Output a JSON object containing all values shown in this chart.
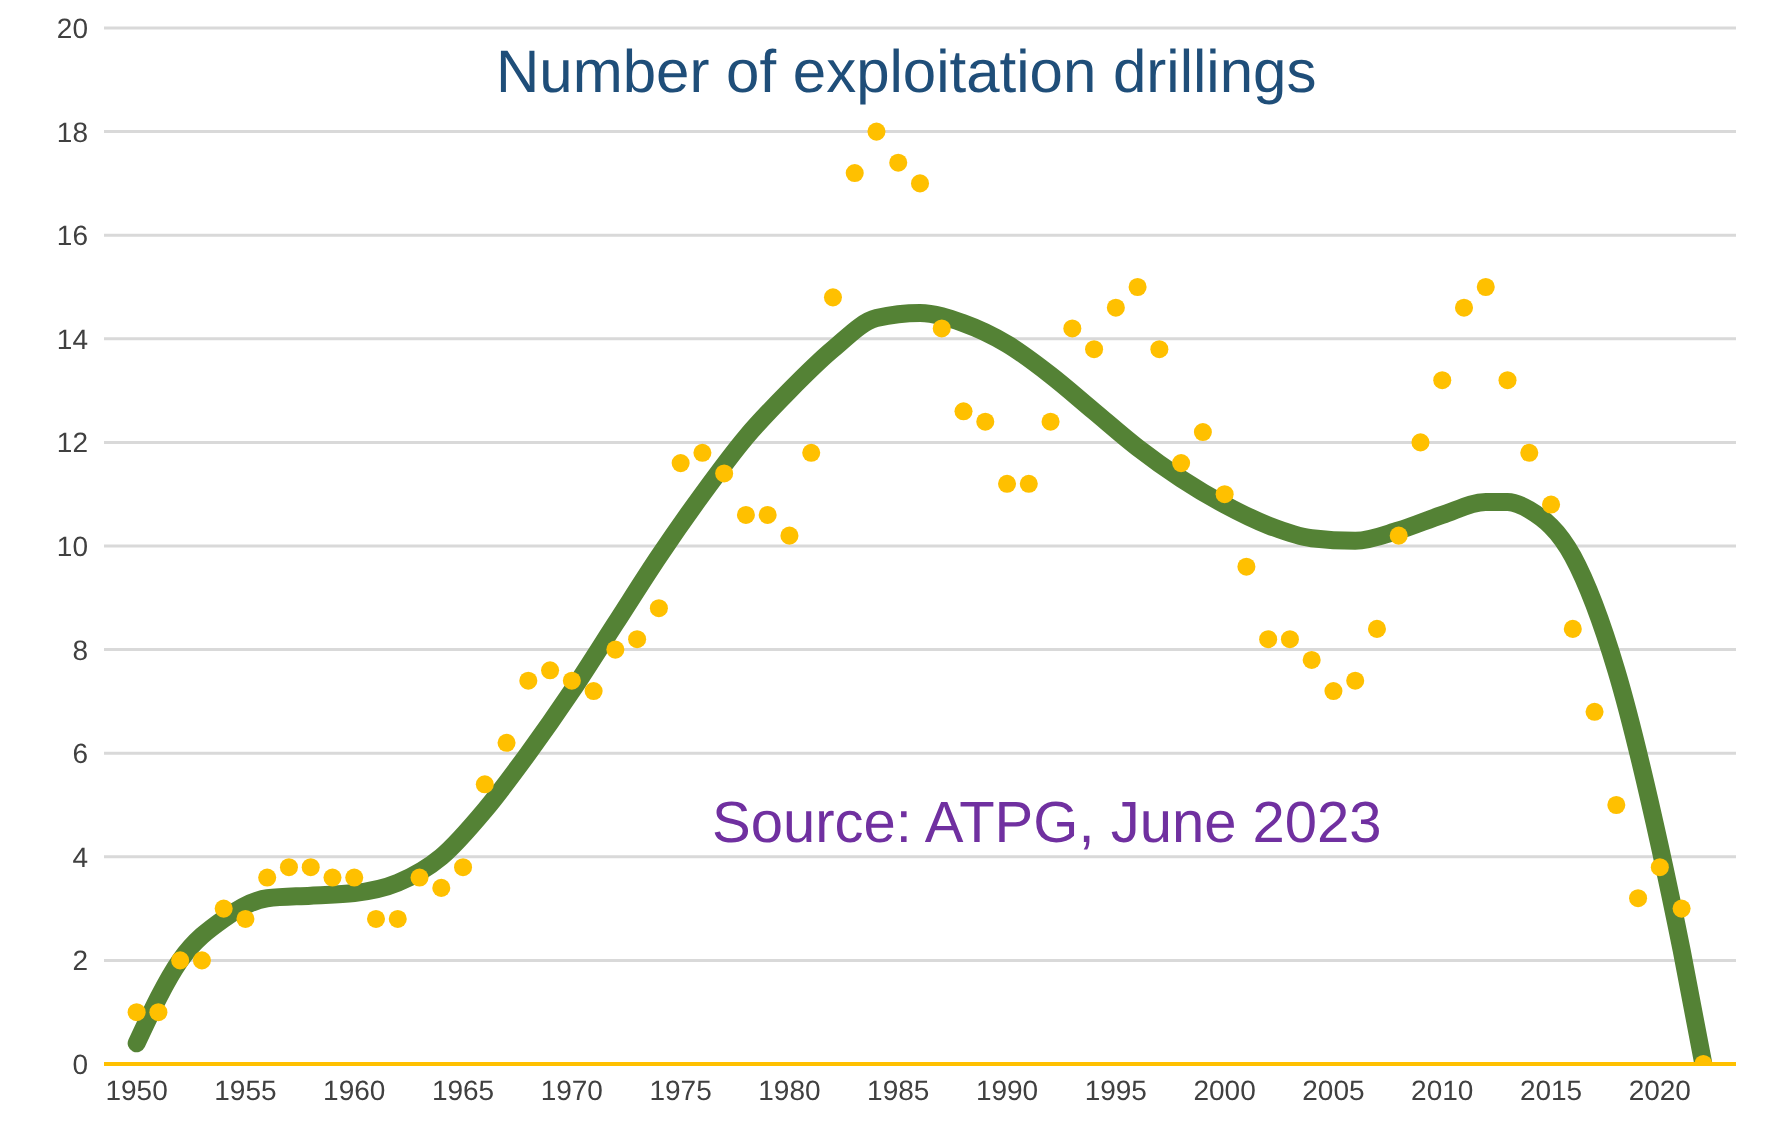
{
  "chart_data": {
    "type": "scatter",
    "title": "Number of exploitation drillings",
    "annotations": [
      "Source: ATPG, June 2023"
    ],
    "x": [
      1950,
      1951,
      1952,
      1953,
      1954,
      1955,
      1956,
      1957,
      1958,
      1959,
      1960,
      1961,
      1962,
      1963,
      1964,
      1965,
      1966,
      1967,
      1968,
      1969,
      1970,
      1971,
      1972,
      1973,
      1974,
      1975,
      1976,
      1977,
      1978,
      1979,
      1980,
      1981,
      1982,
      1983,
      1984,
      1985,
      1986,
      1987,
      1988,
      1989,
      1990,
      1991,
      1992,
      1993,
      1994,
      1995,
      1996,
      1997,
      1998,
      1999,
      2000,
      2001,
      2002,
      2003,
      2004,
      2005,
      2006,
      2007,
      2008,
      2009,
      2010,
      2011,
      2012,
      2013,
      2014,
      2015,
      2016,
      2017,
      2018,
      2019,
      2020,
      2021,
      2022
    ],
    "series": [
      {
        "color": "#ffc000",
        "marker": "circle",
        "values": [
          1.0,
          1.0,
          2.0,
          2.0,
          3.0,
          2.8,
          3.6,
          3.8,
          3.8,
          3.6,
          3.6,
          2.8,
          2.8,
          3.6,
          3.4,
          3.8,
          5.4,
          6.2,
          7.4,
          7.6,
          7.4,
          7.2,
          8.0,
          8.2,
          8.8,
          11.6,
          11.8,
          11.4,
          10.6,
          10.6,
          10.2,
          11.8,
          14.8,
          17.2,
          18.0,
          17.4,
          17.0,
          14.2,
          12.6,
          12.4,
          11.2,
          11.2,
          12.4,
          14.2,
          13.8,
          14.6,
          15.0,
          13.8,
          11.6,
          12.2,
          11.0,
          9.6,
          8.2,
          8.2,
          7.8,
          7.2,
          7.4,
          8.4,
          10.2,
          12.0,
          13.2,
          14.6,
          15.0,
          13.2,
          11.8,
          10.8,
          8.4,
          6.8,
          5.0,
          3.2,
          3.8,
          3.0,
          0
        ]
      },
      {
        "type": "line",
        "marker": "none",
        "color": "#548235",
        "x": [
          1950,
          1952,
          1954,
          1956,
          1958,
          1960,
          1962,
          1964,
          1966,
          1968,
          1970,
          1972,
          1974,
          1976,
          1978,
          1980,
          1982,
          1984,
          1986,
          1988,
          1990,
          1992,
          1994,
          1996,
          1998,
          2000,
          2002,
          2004,
          2006,
          2008,
          2010,
          2012,
          2013,
          2014,
          2016,
          2018,
          2020,
          2021,
          2022
        ],
        "values": [
          0.4,
          2.0,
          2.8,
          3.2,
          3.25,
          3.3,
          3.5,
          4.0,
          4.9,
          6.0,
          7.2,
          8.5,
          9.8,
          11.0,
          12.1,
          13.0,
          13.8,
          14.4,
          14.5,
          14.3,
          13.9,
          13.3,
          12.6,
          11.9,
          11.3,
          10.8,
          10.4,
          10.15,
          10.1,
          10.3,
          10.6,
          10.85,
          10.85,
          10.7,
          9.8,
          7.6,
          4.2,
          2.2,
          0
        ]
      }
    ],
    "xlim": [
      1948.5,
      2023.5
    ],
    "xticks": [
      1950,
      1955,
      1960,
      1965,
      1970,
      1975,
      1980,
      1985,
      1990,
      1995,
      2000,
      2005,
      2010,
      2015,
      2020
    ],
    "ylim": [
      0,
      20
    ],
    "yticks": [
      0,
      2,
      4,
      6,
      8,
      10,
      12,
      14,
      16,
      18,
      20
    ],
    "grid": "y"
  }
}
